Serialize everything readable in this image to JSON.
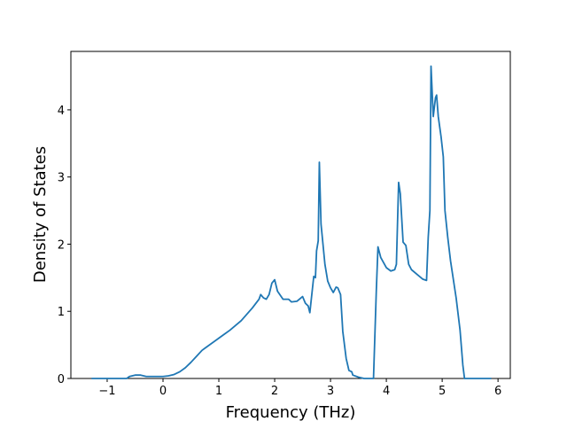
{
  "chart_data": {
    "type": "line",
    "x_label": "Frequency (THz)",
    "y_label": "Density of States",
    "xlim": [
      -1.65,
      6.22
    ],
    "ylim": [
      0,
      4.87
    ],
    "xticks": [
      {
        "value": -1,
        "label": "−1"
      },
      0,
      1,
      2,
      3,
      4,
      5,
      6
    ],
    "yticks": [
      0,
      1,
      2,
      3,
      4
    ],
    "series": [
      {
        "color": "#1f77b4",
        "x": [
          -1.28,
          -0.65,
          -0.6,
          -0.5,
          -0.4,
          -0.3,
          0,
          0.1,
          0.2,
          0.3,
          0.4,
          0.5,
          0.6,
          0.7,
          0.75,
          1.0,
          1.2,
          1.4,
          1.6,
          1.72,
          1.75,
          1.8,
          1.85,
          1.9,
          1.95,
          2.0,
          2.05,
          2.15,
          2.25,
          2.3,
          2.4,
          2.5,
          2.55,
          2.6,
          2.63,
          2.7,
          2.73,
          2.75,
          2.78,
          2.8,
          2.83,
          2.9,
          2.95,
          3.0,
          3.05,
          3.1,
          3.13,
          3.18,
          3.22,
          3.28,
          3.33,
          3.38,
          3.4,
          3.5,
          3.6,
          3.77,
          3.82,
          3.85,
          3.9,
          4.0,
          4.08,
          4.15,
          4.18,
          4.22,
          4.25,
          4.3,
          4.35,
          4.4,
          4.45,
          4.55,
          4.65,
          4.72,
          4.75,
          4.78,
          4.8,
          4.84,
          4.88,
          4.9,
          4.93,
          4.98,
          5.02,
          5.05,
          5.1,
          5.15,
          5.25,
          5.32,
          5.37,
          5.4,
          5.88
        ],
        "values": [
          0,
          0,
          0.03,
          0.05,
          0.05,
          0.03,
          0.03,
          0.04,
          0.06,
          0.1,
          0.16,
          0.24,
          0.33,
          0.42,
          0.45,
          0.6,
          0.72,
          0.86,
          1.05,
          1.18,
          1.25,
          1.2,
          1.18,
          1.25,
          1.42,
          1.47,
          1.3,
          1.18,
          1.18,
          1.14,
          1.15,
          1.22,
          1.12,
          1.08,
          0.98,
          1.52,
          1.5,
          1.9,
          2.05,
          3.22,
          2.3,
          1.7,
          1.45,
          1.35,
          1.28,
          1.36,
          1.35,
          1.25,
          0.7,
          0.3,
          0.12,
          0.1,
          0.05,
          0.02,
          0,
          0,
          1.3,
          1.96,
          1.8,
          1.65,
          1.6,
          1.62,
          1.7,
          2.92,
          2.75,
          2.03,
          1.98,
          1.7,
          1.62,
          1.55,
          1.48,
          1.46,
          2.1,
          2.5,
          4.65,
          3.9,
          4.18,
          4.22,
          3.9,
          3.6,
          3.3,
          2.5,
          2.1,
          1.75,
          1.2,
          0.72,
          0.2,
          0,
          0
        ]
      }
    ]
  }
}
